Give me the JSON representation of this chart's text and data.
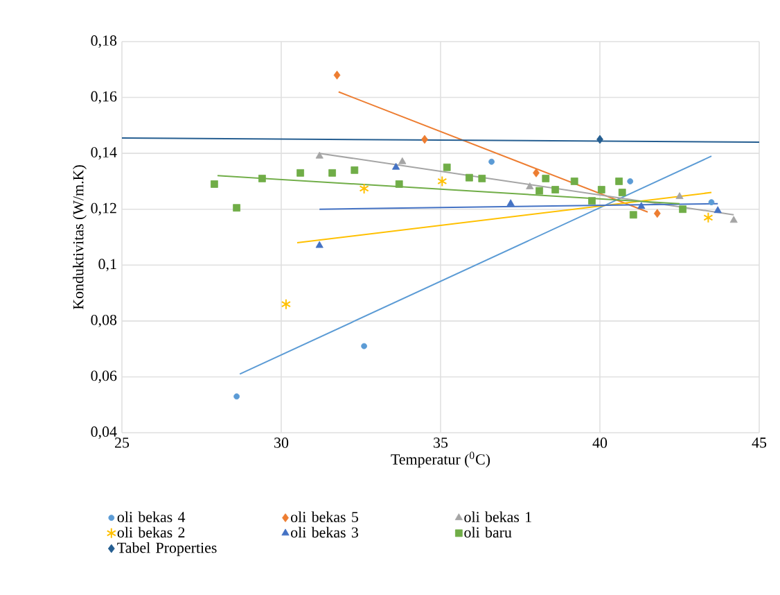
{
  "chart_data": {
    "type": "scatter",
    "xlabel": "Temperatur ($^{0}$C)",
    "ylabel": "Konduktivitas (W/m.K)",
    "xlim": [
      25,
      45
    ],
    "xticks": [
      25,
      30,
      35,
      40,
      45
    ],
    "ylim": [
      0.04,
      0.18
    ],
    "yticks": [
      {
        "value": 0.04,
        "label": "0,04"
      },
      {
        "value": 0.06,
        "label": "0,06"
      },
      {
        "value": 0.08,
        "label": "0,08"
      },
      {
        "value": 0.1,
        "label": "0,1"
      },
      {
        "value": 0.12,
        "label": "0,12"
      },
      {
        "value": 0.14,
        "label": "0,14"
      },
      {
        "value": 0.16,
        "label": "0,16"
      },
      {
        "value": 0.18,
        "label": "0,18"
      }
    ],
    "grid": true,
    "legend": "bottom",
    "series": [
      {
        "name": "oli bekas 4",
        "type": "scatter",
        "marker": "circle",
        "color": "#5b9bd5",
        "x": [
          28.6,
          32.6,
          36.6,
          40.95,
          43.5
        ],
        "values": [
          0.053,
          0.071,
          0.137,
          0.13,
          0.1225
        ]
      },
      {
        "name": "oli bekas 5",
        "type": "scatter",
        "marker": "diamond",
        "color": "#ed7d31",
        "x": [
          31.75,
          34.5,
          38.0,
          41.8
        ],
        "values": [
          0.168,
          0.145,
          0.133,
          0.1185
        ]
      },
      {
        "name": "oli bekas 1",
        "type": "scatter",
        "marker": "triangle",
        "color": "#a5a5a5",
        "x": [
          31.2,
          33.8,
          37.8,
          42.5,
          44.2
        ],
        "values": [
          0.139,
          0.137,
          0.128,
          0.1245,
          0.116
        ]
      },
      {
        "name": "oli bekas 2",
        "type": "scatter",
        "marker": "cross",
        "color": "#ffc000",
        "x": [
          30.15,
          32.6,
          35.05,
          43.4
        ],
        "values": [
          0.086,
          0.1274,
          0.13,
          0.117
        ]
      },
      {
        "name": "oli bekas 3",
        "type": "scatter",
        "marker": "triangle",
        "color": "#4472c4",
        "x": [
          31.2,
          33.6,
          37.2,
          41.3,
          43.7
        ],
        "values": [
          0.107,
          0.135,
          0.122,
          0.121,
          0.1195
        ]
      },
      {
        "name": "oli baru",
        "type": "scatter",
        "marker": "square",
        "color": "#70ad47",
        "x": [
          27.9,
          28.6,
          29.4,
          30.6,
          31.6,
          32.3,
          33.7,
          35.2,
          35.9,
          36.3,
          38.3,
          38.1,
          38.6,
          39.2,
          39.75,
          40.05,
          40.6,
          40.7,
          41.05,
          42.6
        ],
        "values": [
          0.129,
          0.1205,
          0.131,
          0.133,
          0.133,
          0.134,
          0.129,
          0.135,
          0.1313,
          0.131,
          0.131,
          0.1266,
          0.127,
          0.13,
          0.123,
          0.127,
          0.13,
          0.126,
          0.118,
          0.12
        ]
      },
      {
        "name": "Tabel Properties",
        "type": "scatter",
        "marker": "diamond",
        "color": "#255e91",
        "x": [
          40.0
        ],
        "values": [
          0.145
        ]
      },
      {
        "type": "line",
        "color": "#5b9bd5",
        "x": [
          28.7,
          43.5
        ],
        "values": [
          0.061,
          0.139
        ]
      },
      {
        "type": "line",
        "color": "#ed7d31",
        "x": [
          31.8,
          41.5
        ],
        "values": [
          0.162,
          0.119
        ]
      },
      {
        "type": "line",
        "color": "#a5a5a5",
        "x": [
          31.2,
          44.2
        ],
        "values": [
          0.14,
          0.118
        ]
      },
      {
        "type": "line",
        "color": "#ffc000",
        "x": [
          30.5,
          43.5
        ],
        "values": [
          0.108,
          0.126
        ]
      },
      {
        "type": "line",
        "color": "#4472c4",
        "x": [
          31.2,
          43.7
        ],
        "values": [
          0.12,
          0.122
        ]
      },
      {
        "type": "line",
        "color": "#70ad47",
        "x": [
          28.0,
          42.5
        ],
        "values": [
          0.132,
          0.122
        ]
      },
      {
        "type": "line",
        "color": "#255e91",
        "x": [
          25,
          45
        ],
        "values": [
          0.1455,
          0.144
        ]
      }
    ]
  }
}
